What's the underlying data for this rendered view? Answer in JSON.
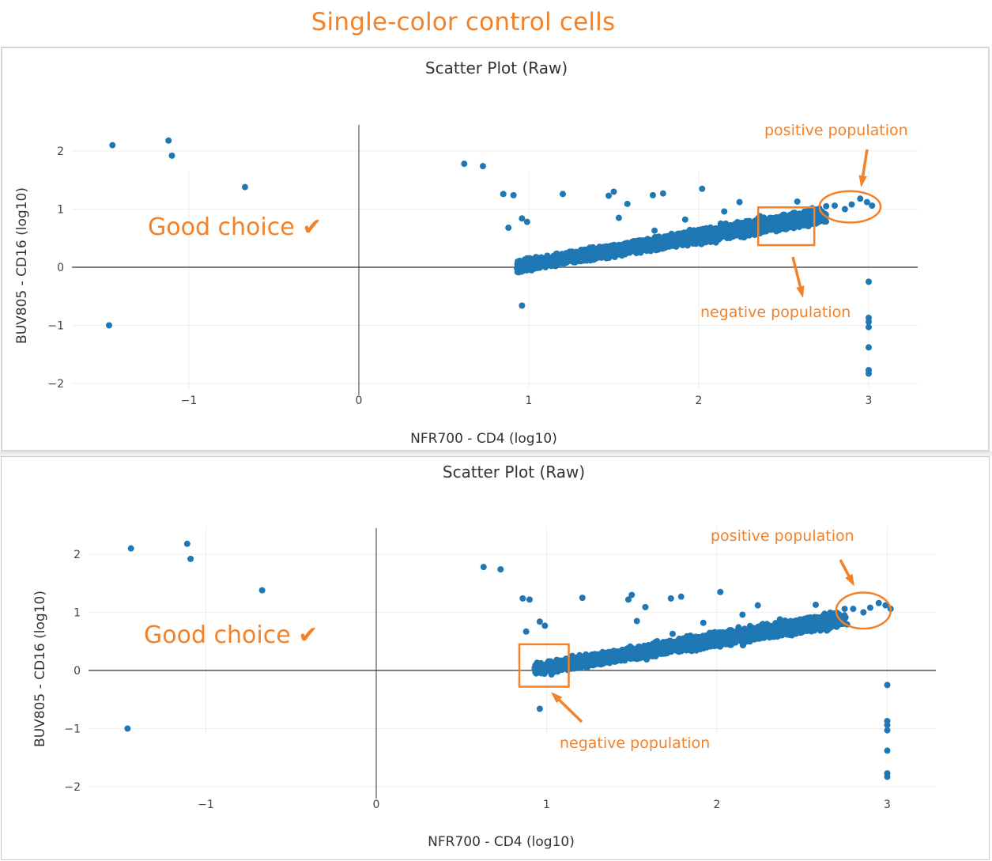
{
  "page": {
    "title": "Single-color control cells",
    "accent_color": "#f28128",
    "point_color": "#1f77b4"
  },
  "chart_data": [
    {
      "type": "scatter",
      "title": "Scatter Plot (Raw)",
      "xlabel": "NFR700 - CD4 (log10)",
      "ylabel": "BUV805 - CD16 (log10)",
      "xlim": [
        -1.7,
        3.28
      ],
      "ylim": [
        -2.25,
        2.45
      ],
      "x_ticks": [
        -1,
        0,
        1,
        2,
        3
      ],
      "y_ticks": [
        -2,
        -1,
        0,
        1,
        2
      ],
      "x_tick_labels": [
        "−1",
        "0",
        "1",
        "2",
        "3"
      ],
      "y_tick_labels": [
        "−2",
        "−1",
        "0",
        "1",
        "2"
      ],
      "grid": true,
      "annotations": {
        "label": "Good choice ✔",
        "positive_label": "positive population",
        "negative_label": "negative population",
        "negative_gate": {
          "x": [
            2.35,
            2.68
          ],
          "y": [
            0.38,
            1.03
          ]
        },
        "positive_gate": {
          "cx": 2.89,
          "cy": 1.04,
          "rx": 0.18,
          "ry": 0.27
        }
      },
      "points": [
        [
          -1.45,
          2.1
        ],
        [
          -1.12,
          2.18
        ],
        [
          -1.1,
          1.92
        ],
        [
          -0.67,
          1.38
        ],
        [
          -1.47,
          -1.0
        ],
        [
          0.62,
          1.78
        ],
        [
          0.73,
          1.74
        ],
        [
          0.85,
          1.26
        ],
        [
          0.91,
          1.24
        ],
        [
          0.96,
          0.84
        ],
        [
          0.99,
          0.78
        ],
        [
          0.88,
          0.68
        ],
        [
          0.96,
          -0.66
        ],
        [
          1.2,
          1.26
        ],
        [
          1.47,
          1.23
        ],
        [
          1.5,
          1.3
        ],
        [
          1.58,
          1.09
        ],
        [
          1.53,
          0.85
        ],
        [
          1.73,
          1.24
        ],
        [
          1.79,
          1.27
        ],
        [
          1.92,
          0.82
        ],
        [
          2.02,
          1.35
        ],
        [
          2.24,
          1.12
        ],
        [
          1.74,
          0.63
        ],
        [
          2.15,
          0.96
        ],
        [
          2.36,
          0.88
        ],
        [
          2.58,
          1.13
        ],
        [
          2.71,
          1.01
        ],
        [
          2.75,
          1.05
        ],
        [
          2.8,
          1.06
        ],
        [
          2.86,
          1.0
        ],
        [
          2.9,
          1.08
        ],
        [
          2.95,
          1.18
        ],
        [
          2.99,
          1.12
        ],
        [
          3.02,
          1.06
        ],
        [
          3.0,
          -0.25
        ],
        [
          3.0,
          -0.87
        ],
        [
          3.0,
          -0.94
        ],
        [
          3.0,
          -1.03
        ],
        [
          3.0,
          -1.38
        ],
        [
          3.0,
          -1.77
        ],
        [
          3.0,
          -1.83
        ]
      ],
      "cloud": {
        "x_start": 0.9,
        "x_end": 2.72,
        "y_start": 0.0,
        "y_end": 0.88,
        "spread_start": 0.16,
        "spread_end": 0.22,
        "count": 4800
      }
    },
    {
      "type": "scatter",
      "title": "Scatter Plot (Raw)",
      "xlabel": "NFR700 - CD4 (log10)",
      "ylabel": "BUV805 - CD16 (log10)",
      "xlim": [
        -1.7,
        3.28
      ],
      "ylim": [
        -2.25,
        2.45
      ],
      "x_ticks": [
        -1,
        0,
        1,
        2,
        3
      ],
      "y_ticks": [
        -2,
        -1,
        0,
        1,
        2
      ],
      "x_tick_labels": [
        "−1",
        "0",
        "1",
        "2",
        "3"
      ],
      "y_tick_labels": [
        "−2",
        "−1",
        "0",
        "1",
        "2"
      ],
      "grid": true,
      "annotations": {
        "label": "Good choice ✔",
        "positive_label": "positive population",
        "negative_label": "negative population",
        "negative_gate": {
          "x": [
            0.84,
            1.13
          ],
          "y": [
            -0.28,
            0.45
          ]
        },
        "positive_gate": {
          "cx": 2.86,
          "cy": 1.03,
          "rx": 0.16,
          "ry": 0.31
        }
      },
      "points": [
        [
          -1.44,
          2.1
        ],
        [
          -1.11,
          2.18
        ],
        [
          -1.09,
          1.92
        ],
        [
          -0.67,
          1.38
        ],
        [
          -1.46,
          -1.0
        ],
        [
          0.63,
          1.78
        ],
        [
          0.73,
          1.74
        ],
        [
          0.86,
          1.24
        ],
        [
          0.9,
          1.22
        ],
        [
          0.96,
          0.84
        ],
        [
          0.99,
          0.77
        ],
        [
          0.88,
          0.67
        ],
        [
          0.96,
          -0.66
        ],
        [
          1.21,
          1.25
        ],
        [
          1.48,
          1.22
        ],
        [
          1.5,
          1.3
        ],
        [
          1.58,
          1.09
        ],
        [
          1.53,
          0.85
        ],
        [
          1.73,
          1.24
        ],
        [
          1.79,
          1.27
        ],
        [
          1.92,
          0.82
        ],
        [
          2.02,
          1.35
        ],
        [
          2.24,
          1.12
        ],
        [
          1.74,
          0.63
        ],
        [
          2.15,
          0.96
        ],
        [
          2.37,
          0.88
        ],
        [
          2.58,
          1.13
        ],
        [
          2.75,
          1.06
        ],
        [
          2.8,
          1.06
        ],
        [
          2.86,
          1.0
        ],
        [
          2.9,
          1.08
        ],
        [
          2.95,
          1.16
        ],
        [
          2.99,
          1.12
        ],
        [
          3.02,
          1.06
        ],
        [
          3.0,
          -0.25
        ],
        [
          3.0,
          -0.87
        ],
        [
          3.0,
          -0.94
        ],
        [
          3.0,
          -1.03
        ],
        [
          3.0,
          -1.38
        ],
        [
          3.0,
          -1.77
        ],
        [
          3.0,
          -1.83
        ]
      ],
      "cloud": {
        "x_start": 0.9,
        "x_end": 2.72,
        "y_start": 0.0,
        "y_end": 0.88,
        "spread_start": 0.16,
        "spread_end": 0.22,
        "count": 4800
      }
    }
  ]
}
